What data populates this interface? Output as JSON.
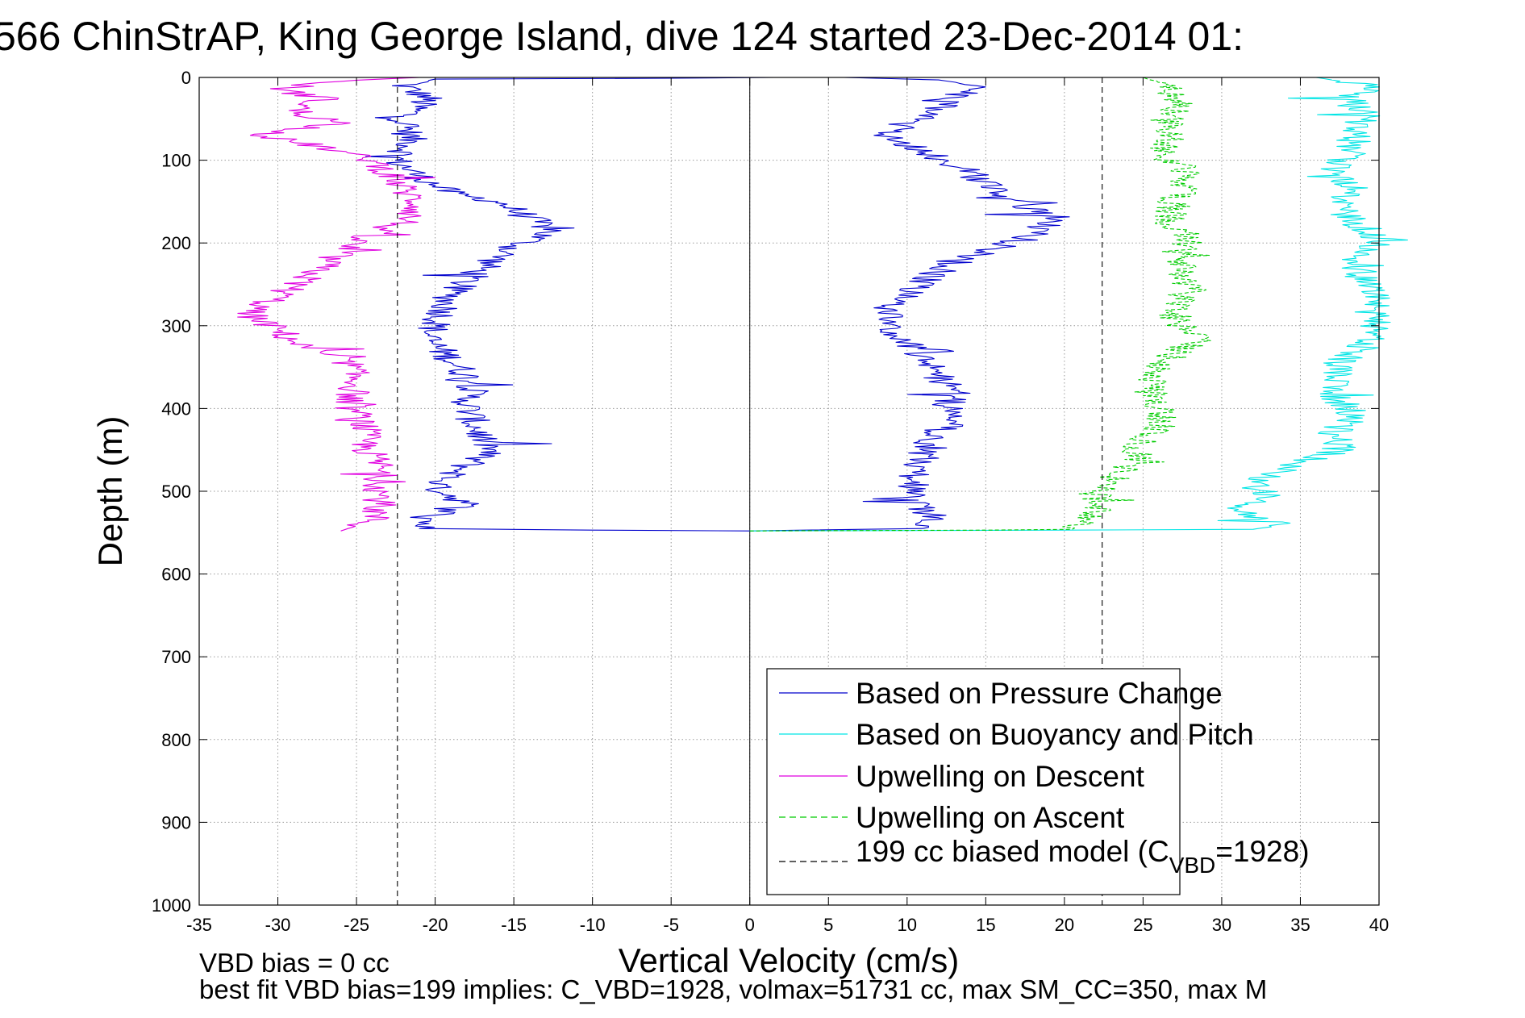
{
  "chart_data": {
    "type": "line",
    "title": "566 ChinStrAP, King George Island, dive 124 started 23-Dec-2014 01:",
    "xlabel": "Vertical Velocity (cm/s)",
    "ylabel": "Depth (m)",
    "xlim": [
      -35,
      40
    ],
    "ylim": [
      0,
      1000
    ],
    "y_reversed": true,
    "grid": true,
    "x_ticks": [
      -35,
      -30,
      -25,
      -20,
      -15,
      -10,
      -5,
      0,
      5,
      10,
      15,
      20,
      25,
      30,
      35,
      40
    ],
    "y_ticks": [
      0,
      100,
      200,
      300,
      400,
      500,
      600,
      700,
      800,
      900,
      1000
    ],
    "legend_placement": "bottom-right",
    "legend": [
      {
        "label": "Based on Pressure Change",
        "color": "#0000cc",
        "dash": "solid"
      },
      {
        "label": "Based on Buoyancy and Pitch",
        "color": "#00e5e5",
        "dash": "solid"
      },
      {
        "label": "Upwelling on Descent",
        "color": "#e000e0",
        "dash": "solid"
      },
      {
        "label": "Upwelling on Ascent",
        "color": "#00cc00",
        "dash": "dashed"
      },
      {
        "label_main": "199 cc biased model (C",
        "label_sub": "VBD",
        "label_tail": "=1928)",
        "color": "#000000",
        "dash": "dashed"
      }
    ],
    "series": [
      {
        "name": "Based on Pressure Change",
        "color": "#0000cc",
        "points": [
          [
            1.5,
            0
          ],
          [
            -5,
            1
          ],
          [
            -20,
            2
          ],
          [
            -22,
            10
          ],
          [
            -20.5,
            25
          ],
          [
            -22,
            50
          ],
          [
            -21.5,
            80
          ],
          [
            -22.5,
            100
          ],
          [
            -21,
            120
          ],
          [
            -19,
            140
          ],
          [
            -16,
            150
          ],
          [
            -14.5,
            165
          ],
          [
            -12.5,
            185
          ],
          [
            -15,
            205
          ],
          [
            -17,
            230
          ],
          [
            -19,
            260
          ],
          [
            -19.5,
            285
          ],
          [
            -20.5,
            315
          ],
          [
            -19,
            340
          ],
          [
            -17.5,
            370
          ],
          [
            -18,
            395
          ],
          [
            -17.5,
            420
          ],
          [
            -16.5,
            450
          ],
          [
            -18.5,
            475
          ],
          [
            -20,
            495
          ],
          [
            -18,
            515
          ],
          [
            -20,
            530
          ],
          [
            -21,
            545
          ],
          [
            -10,
            547
          ],
          [
            0,
            548
          ]
        ]
      },
      {
        "name": "Based on Pressure Change",
        "color": "#0000cc",
        "points": [
          [
            0,
            548
          ],
          [
            3.5,
            547
          ],
          [
            11,
            545
          ],
          [
            12,
            535
          ],
          [
            11,
            520
          ],
          [
            10.5,
            500
          ],
          [
            10.5,
            480
          ],
          [
            11,
            460
          ],
          [
            11.5,
            440
          ],
          [
            12.5,
            420
          ],
          [
            12.5,
            400
          ],
          [
            13,
            380
          ],
          [
            12,
            360
          ],
          [
            11,
            340
          ],
          [
            10,
            320
          ],
          [
            9,
            300
          ],
          [
            8.5,
            280
          ],
          [
            10,
            260
          ],
          [
            11.5,
            240
          ],
          [
            13,
            225
          ],
          [
            15,
            210
          ],
          [
            17.5,
            195
          ],
          [
            19.5,
            170
          ],
          [
            17,
            150
          ],
          [
            15,
            130
          ],
          [
            13.5,
            110
          ],
          [
            11,
            90
          ],
          [
            9,
            70
          ],
          [
            10,
            55
          ],
          [
            12,
            40
          ],
          [
            13,
            25
          ],
          [
            14,
            10
          ],
          [
            12,
            3
          ],
          [
            6,
            0
          ]
        ]
      },
      {
        "name": "Based on Buoyancy and Pitch",
        "color": "#00e5e5",
        "points": [
          [
            0,
            548
          ],
          [
            20,
            547
          ],
          [
            32,
            546
          ],
          [
            34,
            540
          ],
          [
            31,
            525
          ],
          [
            33,
            505
          ],
          [
            32,
            490
          ],
          [
            34.5,
            470
          ],
          [
            37.5,
            450
          ],
          [
            37,
            430
          ],
          [
            38.5,
            410
          ],
          [
            37.5,
            390
          ],
          [
            37,
            370
          ],
          [
            37.5,
            345
          ],
          [
            39,
            325
          ],
          [
            40,
            305
          ],
          [
            39.5,
            285
          ],
          [
            40,
            265
          ],
          [
            39,
            245
          ],
          [
            38.5,
            220
          ],
          [
            40,
            195
          ],
          [
            38.5,
            175
          ],
          [
            37.5,
            155
          ],
          [
            38.5,
            135
          ],
          [
            37,
            115
          ],
          [
            38,
            95
          ],
          [
            38.5,
            70
          ],
          [
            39,
            45
          ],
          [
            38,
            25
          ],
          [
            40,
            10
          ],
          [
            37,
            3
          ],
          [
            36,
            0
          ]
        ]
      },
      {
        "name": "Upwelling on Descent",
        "color": "#e000e0",
        "points": [
          [
            -21,
            0
          ],
          [
            -27,
            5
          ],
          [
            -30,
            15
          ],
          [
            -27,
            25
          ],
          [
            -29,
            40
          ],
          [
            -26,
            55
          ],
          [
            -31,
            70
          ],
          [
            -27,
            85
          ],
          [
            -24,
            100
          ],
          [
            -23,
            115
          ],
          [
            -22,
            135
          ],
          [
            -21,
            155
          ],
          [
            -22,
            175
          ],
          [
            -24.5,
            190
          ],
          [
            -26,
            210
          ],
          [
            -28,
            240
          ],
          [
            -30,
            265
          ],
          [
            -32,
            285
          ],
          [
            -30,
            305
          ],
          [
            -28.5,
            325
          ],
          [
            -25.5,
            345
          ],
          [
            -25,
            370
          ],
          [
            -25.5,
            395
          ],
          [
            -24.5,
            420
          ],
          [
            -24.5,
            445
          ],
          [
            -23.5,
            470
          ],
          [
            -23.5,
            490
          ],
          [
            -23.5,
            515
          ],
          [
            -24,
            535
          ],
          [
            -26,
            548
          ]
        ]
      },
      {
        "name": "Upwelling on Ascent",
        "color": "#00cc00",
        "dash": "dashed",
        "points": [
          [
            0,
            548
          ],
          [
            15,
            547
          ],
          [
            20.5,
            546
          ],
          [
            21.5,
            535
          ],
          [
            22,
            520
          ],
          [
            22,
            500
          ],
          [
            23.5,
            480
          ],
          [
            24.5,
            460
          ],
          [
            25,
            440
          ],
          [
            26,
            420
          ],
          [
            26,
            400
          ],
          [
            25.5,
            380
          ],
          [
            25.5,
            355
          ],
          [
            27,
            335
          ],
          [
            28.5,
            315
          ],
          [
            27,
            295
          ],
          [
            27,
            275
          ],
          [
            28,
            255
          ],
          [
            27.5,
            235
          ],
          [
            27,
            215
          ],
          [
            28,
            195
          ],
          [
            26.5,
            175
          ],
          [
            27,
            150
          ],
          [
            27.5,
            130
          ],
          [
            27.5,
            110
          ],
          [
            26,
            90
          ],
          [
            27,
            70
          ],
          [
            26.5,
            50
          ],
          [
            27.5,
            30
          ],
          [
            26.5,
            10
          ],
          [
            25,
            0
          ]
        ]
      },
      {
        "name": "199 cc biased model (C_VBD=1928)",
        "color": "#000000",
        "dash": "dashed",
        "points": [
          [
            -22.4,
            0
          ],
          [
            -22.4,
            1000
          ]
        ]
      },
      {
        "name": "199 cc biased model (C_VBD=1928)",
        "color": "#000000",
        "dash": "dashed",
        "points": [
          [
            22.4,
            0
          ],
          [
            22.4,
            1000
          ]
        ]
      }
    ],
    "zero_line": {
      "x": 0,
      "color": "#000000"
    },
    "footer_lines": [
      "VBD bias = 0 cc",
      "best fit VBD bias=199 implies: C_VBD=1928, volmax=51731 cc, max SM_CC=350, max M"
    ]
  }
}
